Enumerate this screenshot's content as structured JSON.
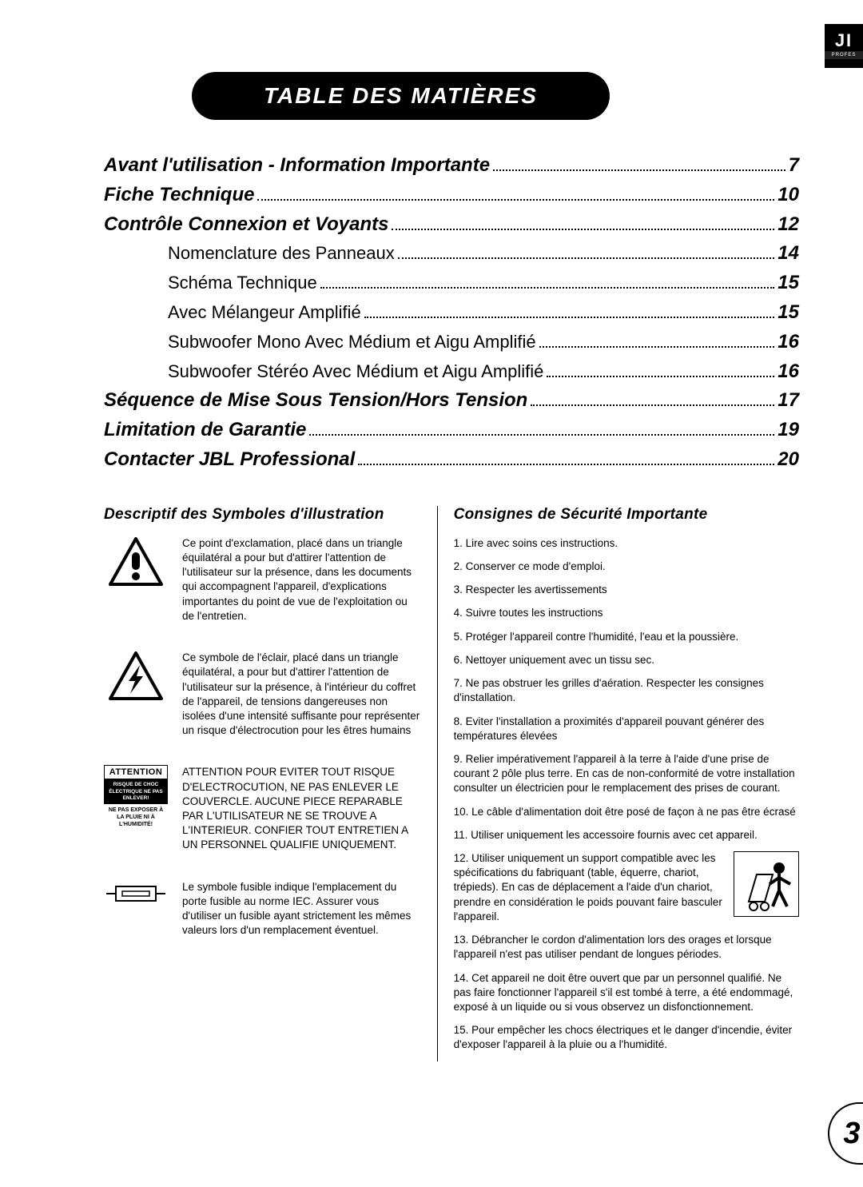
{
  "logo": {
    "brand": "JI",
    "sub": "PROFES"
  },
  "title": "TABLE DES MATIÈRES",
  "toc": [
    {
      "type": "main",
      "label": "Avant l'utilisation - Information Importante",
      "page": "7"
    },
    {
      "type": "main",
      "label": "Fiche Technique",
      "page": "10"
    },
    {
      "type": "main",
      "label": "Contrôle Connexion et Voyants",
      "page": "12"
    },
    {
      "type": "sub",
      "label": "Nomenclature des Panneaux",
      "page": "14"
    },
    {
      "type": "sub",
      "label": "Schéma Technique",
      "page": "15"
    },
    {
      "type": "sub",
      "label": "Avec Mélangeur Amplifié",
      "page": "15"
    },
    {
      "type": "sub",
      "label": "Subwoofer Mono Avec Médium et Aigu Amplifié",
      "page": "16"
    },
    {
      "type": "sub",
      "label": "Subwoofer Stéréo Avec Médium et Aigu Amplifié",
      "page": "16"
    },
    {
      "type": "main",
      "label": "Séquence de Mise Sous Tension/Hors Tension",
      "page": "17"
    },
    {
      "type": "main",
      "label": "Limitation de Garantie",
      "page": "19"
    },
    {
      "type": "main",
      "label": "Contacter JBL Professional",
      "page": "20"
    }
  ],
  "left": {
    "heading": "Descriptif des Symboles d'illustration",
    "items": [
      {
        "icon": "exclamation-triangle",
        "text": "Ce point d'exclamation, placé dans un triangle équilatéral a pour but d'attirer l'attention de l'utilisateur sur la présence, dans les documents qui accompagnent l'appareil, d'explications importantes du point de vue de l'exploitation ou de l'entretien."
      },
      {
        "icon": "lightning-triangle",
        "text": "Ce symbole de l'éclair, placé dans un triangle équilatéral, a pour but d'attirer l'attention de l'utilisateur sur la présence, à l'intérieur du coffret de l'appareil, de tensions dangereuses non isolées d'une intensité suffisante pour représenter un risque d'électrocution pour les êtres humains"
      },
      {
        "icon": "attention-box",
        "text": "ATTENTION POUR EVITER TOUT RISQUE D'ELECTROCUTION, NE PAS ENLEVER LE COUVERCLE. AUCUNE PIECE REPARABLE PAR L'UTILISATEUR NE SE TROUVE A L'INTERIEUR. CONFIER TOUT ENTRETIEN A UN PERSONNEL QUALIFIE UNIQUEMENT."
      },
      {
        "icon": "fuse",
        "text": "Le symbole fusible indique l'emplacement du porte fusible au norme IEC. Assurer vous d'utiliser un fusible ayant strictement les mêmes valeurs lors d'un remplacement éventuel."
      }
    ],
    "attention_box": {
      "title": "ATTENTION",
      "black": "RISQUE DE CHOC ÉLECTRIQUE NE PAS ENLEVER!",
      "small": "NE PAS EXPOSER À LA PLUIE NI À L'HUMIDITÉ!"
    }
  },
  "right": {
    "heading": "Consignes de Sécurité Importante",
    "items": [
      "1. Lire avec soins ces instructions.",
      "2. Conserver ce mode d'emploi.",
      "3. Respecter les avertissements",
      "4. Suivre toutes les instructions",
      "5. Protéger l'appareil contre l'humidité, l'eau et la poussière.",
      "6. Nettoyer uniquement avec un tissu sec.",
      "7. Ne pas obstruer les grilles d'aération. Respecter les consignes d'installation.",
      "8. Eviter l'installation a proximités d'appareil pouvant générer des températures élevées",
      "9. Relier impérativement l'appareil à la terre à l'aide d'une prise de courant 2 pôle plus terre. En cas de non-conformité de votre installation consulter un électricien pour le remplacement des prises de courant.",
      "10. Le câble d'alimentation doit être posé de façon à ne pas être écrasé",
      "11. Utiliser uniquement les accessoire fournis avec cet appareil.",
      "12. Utiliser uniquement un support compatible avec les spécifications du fabriquant (table, équerre, chariot, trépieds). En cas de déplacement a l'aide d'un chariot, prendre en considération le poids pouvant faire basculer l'appareil.",
      "13. Débrancher le cordon d'alimentation lors des orages et lorsque l'appareil n'est pas utiliser pendant de longues périodes.",
      "14. Cet appareil ne doit être ouvert que par un personnel qualifié. Ne pas  faire fonctionner l'appareil s'il est tombé à terre, a été endommagé, exposé à un liquide ou si vous observez un disfonctionnement.",
      "15. Pour empêcher les chocs électriques et le danger d'incendie, éviter d'exposer l'appareil à la pluie  ou a l'humidité."
    ]
  },
  "page_number": "3"
}
